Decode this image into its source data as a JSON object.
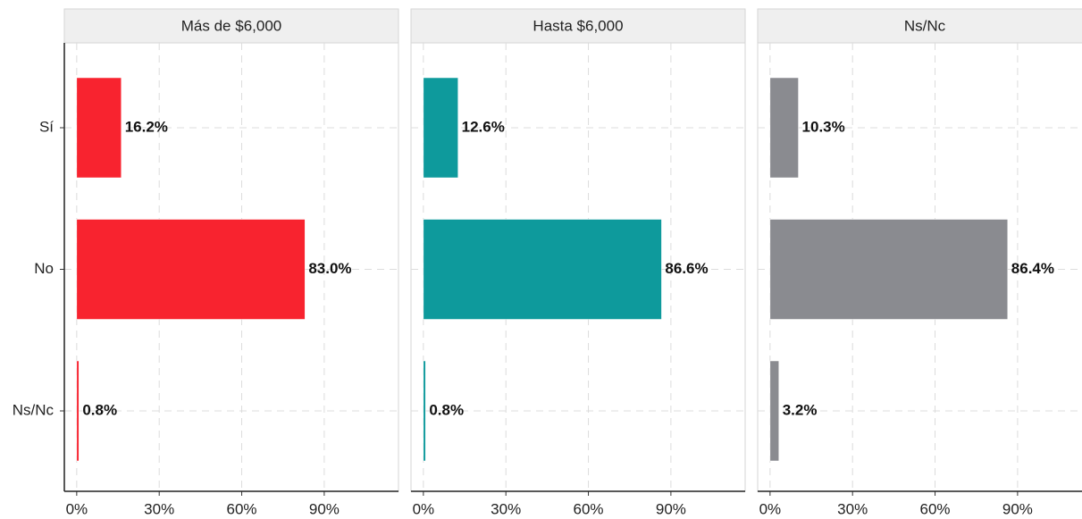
{
  "chart_data": [
    {
      "type": "bar",
      "orientation": "horizontal",
      "title": "Más de $6,000",
      "categories": [
        "Sí",
        "No",
        "Ns/Nc"
      ],
      "values": [
        16.2,
        83.0,
        0.8
      ],
      "value_labels": [
        "16.2%",
        "83.0%",
        "0.8%"
      ],
      "color": "#f8232f",
      "xlim": [
        -4.5,
        117
      ],
      "xticks": [
        {
          "value": 0,
          "label": "0%"
        },
        {
          "value": 30,
          "label": "30%"
        },
        {
          "value": 60,
          "label": "60%"
        },
        {
          "value": 90,
          "label": "90%"
        }
      ],
      "grid": true
    },
    {
      "type": "bar",
      "orientation": "horizontal",
      "title": "Hasta $6,000",
      "values": [
        12.6,
        86.6,
        0.8
      ],
      "value_labels": [
        "12.6%",
        "86.6%",
        "0.8%"
      ],
      "color": "#0e9a9c",
      "xlim": [
        -4.5,
        117
      ],
      "xticks": [
        {
          "value": 0,
          "label": "0%"
        },
        {
          "value": 30,
          "label": "30%"
        },
        {
          "value": 60,
          "label": "60%"
        },
        {
          "value": 90,
          "label": "90%"
        }
      ],
      "grid": true
    },
    {
      "type": "bar",
      "orientation": "horizontal",
      "title": "Ns/Nc",
      "values": [
        10.3,
        86.4,
        3.2
      ],
      "value_labels": [
        "10.3%",
        "86.4%",
        "3.2%"
      ],
      "color": "#8a8b90",
      "xlim": [
        -4.5,
        117
      ],
      "xticks": [
        {
          "value": 0,
          "label": "0%"
        },
        {
          "value": 30,
          "label": "30%"
        },
        {
          "value": 60,
          "label": "60%"
        },
        {
          "value": 90,
          "label": "90%"
        }
      ],
      "grid": true
    }
  ]
}
